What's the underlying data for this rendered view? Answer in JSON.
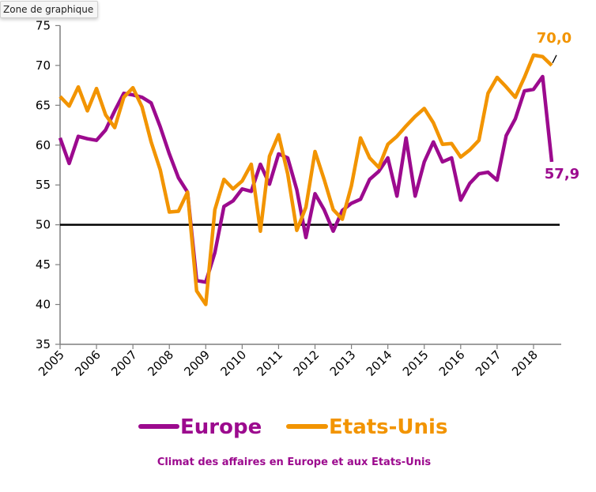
{
  "tooltip": "Zone de graphique",
  "chart_data": {
    "type": "line",
    "title": "Climat des affaires en Europe et aux Etats-Unis",
    "xlabel": "",
    "ylabel": "",
    "ylim": [
      35,
      75
    ],
    "yticks": [
      "35",
      "40",
      "45",
      "50",
      "55",
      "60",
      "65",
      "70",
      "75"
    ],
    "xticks": [
      "2005",
      "2006",
      "2007",
      "2008",
      "2009",
      "2010",
      "2011",
      "2012",
      "2013",
      "2014",
      "2015",
      "2016",
      "2017",
      "2018"
    ],
    "x_start": 2005,
    "x_step": 0.25,
    "reference_line": 50,
    "grid": false,
    "legend_position": "bottom",
    "series": [
      {
        "name": "Europe",
        "color": "#9C0A8E",
        "end_label": "57,9",
        "values": [
          60.9,
          57.7,
          61.1,
          60.8,
          60.6,
          61.9,
          64.3,
          66.5,
          66.3,
          66.0,
          65.3,
          62.3,
          58.9,
          55.9,
          54.1,
          43.0,
          42.8,
          46.5,
          52.3,
          53.0,
          54.5,
          54.2,
          57.6,
          55.1,
          58.9,
          58.4,
          54.4,
          48.4,
          53.9,
          51.9,
          49.2,
          51.8,
          52.7,
          53.2,
          55.7,
          56.7,
          58.4,
          53.6,
          60.9,
          53.6,
          57.9,
          60.4,
          57.9,
          58.4,
          53.1,
          55.2,
          56.4,
          56.6,
          55.6,
          61.2,
          63.3,
          66.8,
          67.0,
          68.6,
          57.9
        ]
      },
      {
        "name": "Etats-Unis",
        "color": "#F29400",
        "end_label": "70,0",
        "values": [
          66.1,
          64.9,
          67.3,
          64.3,
          67.1,
          63.8,
          62.2,
          66.0,
          67.2,
          64.8,
          60.4,
          56.9,
          51.6,
          51.7,
          54.1,
          41.7,
          40.0,
          51.9,
          55.7,
          54.5,
          55.5,
          57.6,
          49.2,
          58.6,
          61.3,
          56.4,
          49.3,
          52.2,
          59.2,
          55.7,
          51.9,
          50.7,
          54.9,
          60.9,
          58.4,
          57.2,
          60.1,
          61.1,
          62.4,
          63.6,
          64.6,
          62.8,
          60.1,
          60.2,
          58.5,
          59.4,
          60.6,
          66.5,
          68.5,
          67.3,
          66.0,
          68.5,
          71.3,
          71.1,
          70.0
        ]
      }
    ]
  }
}
